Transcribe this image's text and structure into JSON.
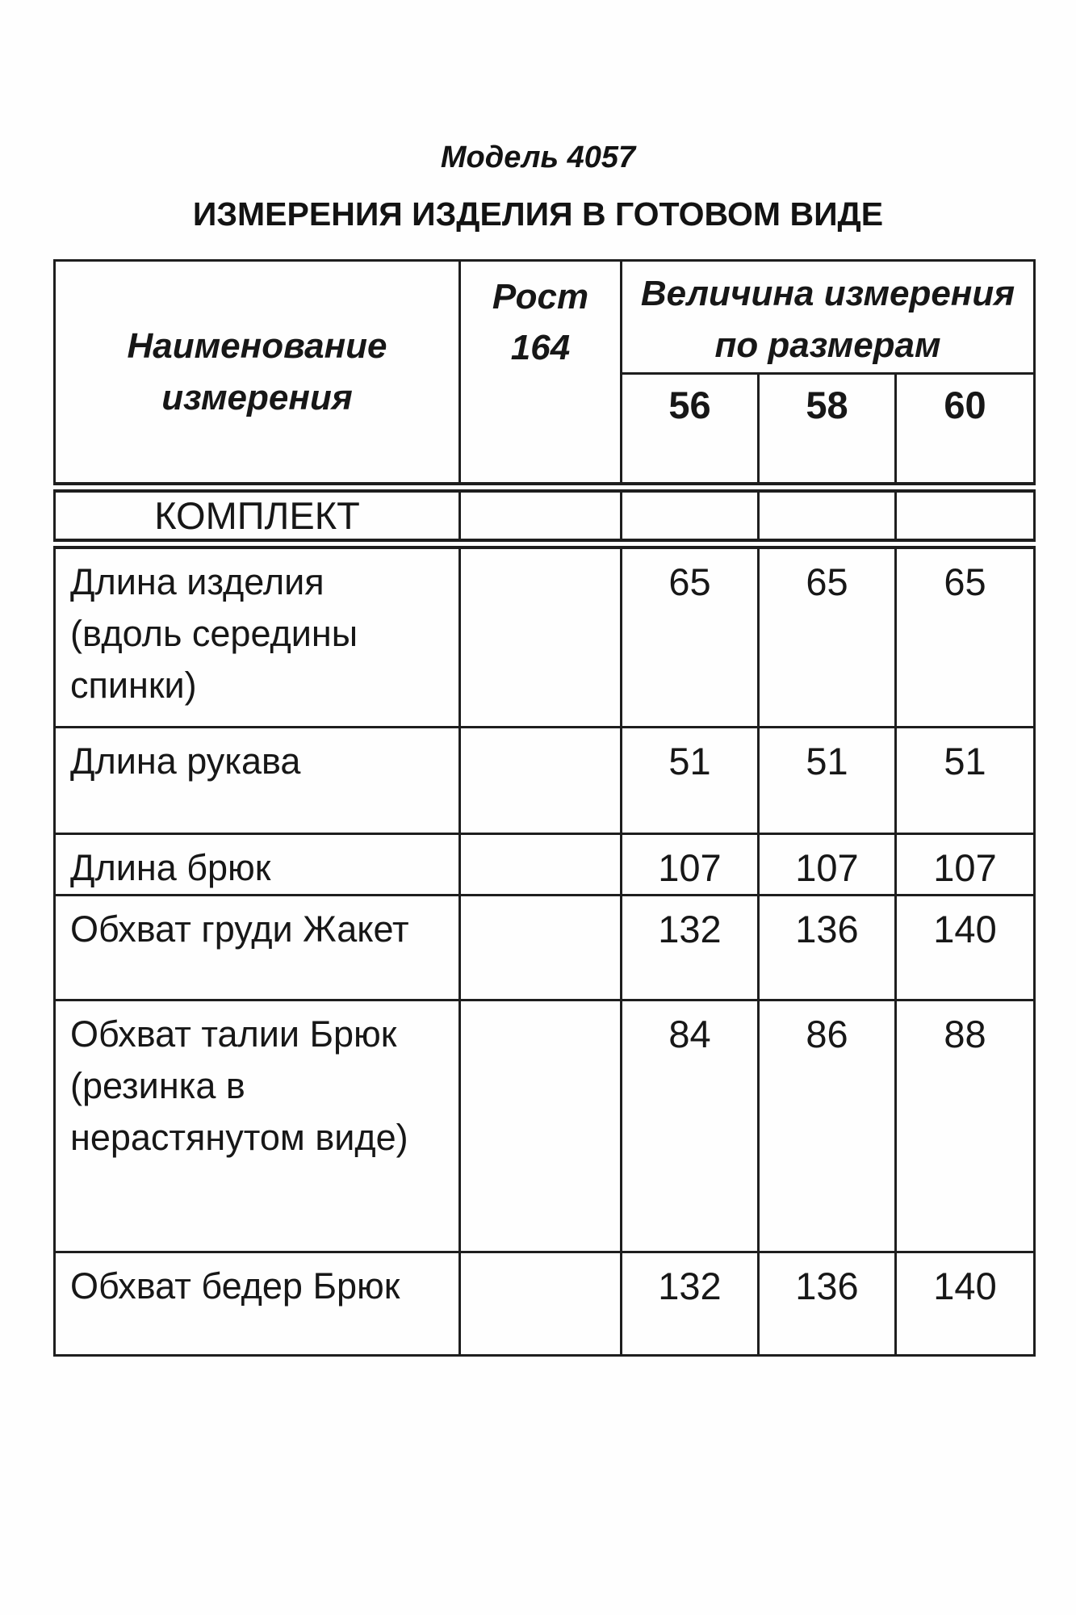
{
  "page": {
    "title": "Модель 4057",
    "subtitle": "ИЗМЕРЕНИЯ ИЗДЕЛИЯ В ГОТОВОМ ВИДЕ"
  },
  "table": {
    "header": {
      "name_label": "Наименование измерения",
      "name_lines": [
        "Наименование",
        "измерения"
      ],
      "rost_label": "Рост 164",
      "rost_lines": [
        "Рост",
        "164"
      ],
      "velichina_label": "Величина измерения по размерам",
      "velichina_lines": [
        "Величина измерения",
        "по размерам"
      ],
      "sizes": [
        "56",
        "58",
        "60"
      ]
    },
    "section_row": {
      "label": "КОМПЛЕКТ"
    },
    "rows": [
      {
        "label": "Длина изделия (вдоль середины спинки)",
        "lines": [
          "Длина изделия",
          "(вдоль середины",
          "спинки)"
        ],
        "values": [
          "65",
          "65",
          "65"
        ]
      },
      {
        "label": "Длина рукава",
        "lines": [
          "Длина рукава"
        ],
        "values": [
          "51",
          "51",
          "51"
        ]
      },
      {
        "label": "Длина брюк",
        "lines": [
          "Длина брюк"
        ],
        "values": [
          "107",
          "107",
          "107"
        ]
      },
      {
        "label": "Обхват груди Жакет",
        "lines": [
          "Обхват груди Жакет"
        ],
        "values": [
          "132",
          "136",
          "140"
        ]
      },
      {
        "label": "Обхват талии Брюк (резинка в нерастянутом виде)",
        "lines": [
          "Обхват талии Брюк",
          "(резинка в",
          "нерастянутом виде)"
        ],
        "values": [
          "84",
          "86",
          "88"
        ]
      },
      {
        "label": "Обхват бедер Брюк",
        "lines": [
          "Обхват бедер Брюк"
        ],
        "values": [
          "132",
          "136",
          "140"
        ]
      }
    ]
  }
}
